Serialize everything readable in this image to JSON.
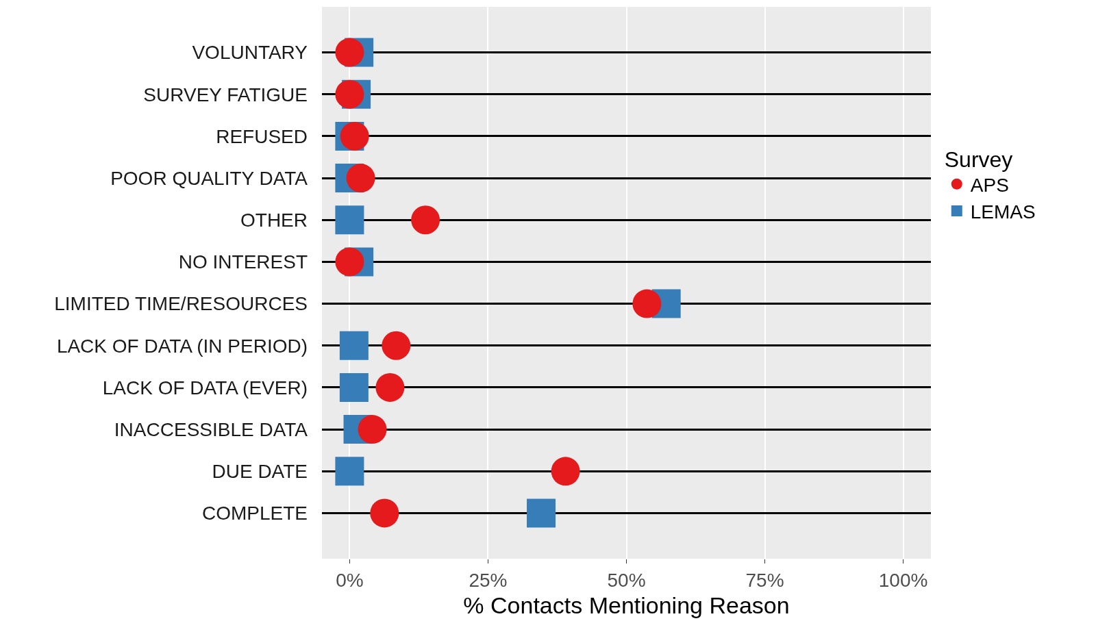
{
  "chart_data": {
    "type": "scatter",
    "xlabel": "% Contacts Mentioning Reason",
    "legend_title": "Survey",
    "legend": "right",
    "categories": [
      "VOLUNTARY",
      "SURVEY FATIGUE",
      "REFUSED",
      "POOR QUALITY DATA",
      "OTHER",
      "NO INTEREST",
      "LIMITED TIME/RESOURCES",
      "LACK OF DATA (IN PERIOD)",
      "LACK OF DATA (EVER)",
      "INACCESSIBLE DATA",
      "DUE DATE",
      "COMPLETE"
    ],
    "series": [
      {
        "name": "APS",
        "color": "#e41a1c",
        "marker": "circle",
        "values": [
          0,
          0,
          0.9,
          2,
          13.7,
          0,
          53.7,
          8.4,
          7.3,
          4.1,
          39,
          6.3
        ]
      },
      {
        "name": "LEMAS",
        "color": "#377eb8",
        "marker": "square",
        "values": [
          1.7,
          1.2,
          0,
          0,
          0,
          1.7,
          57.2,
          0.8,
          0.8,
          1.5,
          0,
          34.6
        ]
      }
    ],
    "xlim": [
      -5,
      105
    ],
    "xticks": [
      {
        "value": 0,
        "label": "0%"
      },
      {
        "value": 25,
        "label": "25%"
      },
      {
        "value": 50,
        "label": "50%"
      },
      {
        "value": 75,
        "label": "75%"
      },
      {
        "value": 100,
        "label": "100%"
      }
    ],
    "grid": true,
    "orientation": "horizontal"
  }
}
